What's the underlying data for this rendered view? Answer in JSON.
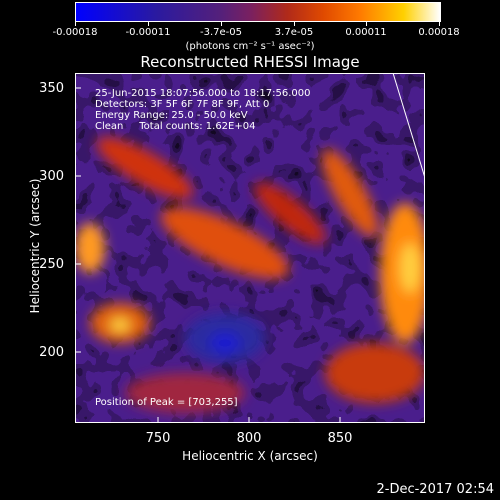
{
  "colorbar": {
    "tick_labels": [
      "-0.00018",
      "-0.00011",
      "-3.7e-05",
      "3.7e-05",
      "0.00011",
      "0.00018"
    ],
    "units": "(photons cm⁻² s⁻¹ asec⁻²)"
  },
  "title": "Reconstructed RHESSI Image",
  "info": {
    "time_range": "25-Jun-2015 18:07:56.000 to 18:17:56.000",
    "detectors": "Detectors: 3F 5F 6F 7F 8F 9F, Att 0",
    "energy": "Energy Range: 25.0 - 50.0 keV",
    "method": "Clean     Total counts: 1.62E+04"
  },
  "peak": "Position of Peak = [703,255]",
  "axes": {
    "ylabel": "Heliocentric Y (arcsec)",
    "xlabel": "Heliocentric X (arcsec)",
    "yticks": [
      "350",
      "300",
      "250",
      "200"
    ],
    "xticks": [
      "750",
      "800",
      "850"
    ]
  },
  "datestamp": "2-Dec-2017 02:54"
}
